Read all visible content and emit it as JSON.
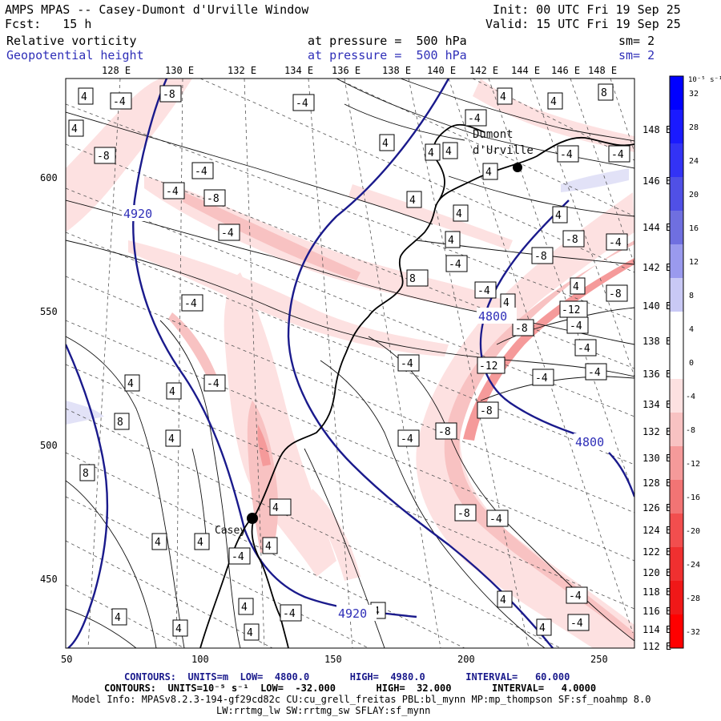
{
  "header": {
    "title": "AMPS MPAS -- Casey-Dumont d'Urville Window",
    "init": "Init: 00 UTC Fri 19 Sep 25",
    "fcst": "Fcst:   15 h",
    "valid": "Valid: 15 UTC Fri 19 Sep 25",
    "field1_name": "Relative vorticity",
    "field1_level": "at pressure =  500 hPa",
    "field1_sm": "sm= 2",
    "field2_name": "Geopotential height",
    "field2_level": "at pressure =  500 hPa",
    "field2_sm": "sm= 2"
  },
  "map": {
    "top_lon_labels": [
      "128 E",
      "130 E",
      "132 E",
      "134 E",
      "136 E",
      "138 E",
      "140 E",
      "142 E",
      "144 E",
      "146 E",
      "148 E"
    ],
    "right_lon_labels": [
      "148 E",
      "146 E",
      "144 E",
      "142 E",
      "140 E",
      "138 E",
      "136 E",
      "134 E",
      "132 E",
      "130 E",
      "128 E",
      "126 E",
      "124 E",
      "122 E",
      "120 E",
      "118 E",
      "116 E",
      "114 E",
      "112 E"
    ],
    "x_ticks": [
      "50",
      "100",
      "150",
      "200",
      "250"
    ],
    "y_ticks": [
      "600",
      "550",
      "500",
      "450"
    ],
    "station_labels": [
      "Dumont",
      "d'Urville",
      "Casey"
    ],
    "height_labels": [
      "4920",
      "4800",
      "4800",
      "4920"
    ],
    "vorticity_labels": [
      "4",
      "-4",
      "-8",
      "4",
      "4",
      "-4",
      "8",
      "4",
      "-4",
      "-8",
      "-4",
      "-4",
      "-8",
      "-4",
      "4",
      "4",
      "4",
      "-4",
      "4",
      "-4",
      "-8",
      "4",
      "-8",
      "-4",
      "4",
      "4",
      "8",
      "-4",
      "-4",
      "4",
      "4",
      "-4",
      "-8",
      "-4",
      "-4",
      "-12",
      "-8",
      "-4",
      "-12",
      "-4",
      "-4",
      "4",
      "4",
      "8",
      "8",
      "4",
      "-4",
      "4",
      "4",
      "-8",
      "-8",
      "-4",
      "-8",
      "4",
      "4",
      "-4",
      "4",
      "4",
      "-4",
      "4",
      "4",
      "-4",
      "-4",
      "4",
      "-4",
      "4",
      "4",
      "4"
    ]
  },
  "colorbar": {
    "unit_label": "10⁻⁵ s⁻¹",
    "labels": [
      "32",
      "28",
      "24",
      "20",
      "16",
      "12",
      "8",
      "4",
      "0",
      "-4",
      "-8",
      "-12",
      "-16",
      "-20",
      "-24",
      "-28",
      "-32"
    ],
    "colors": [
      "#0000ff",
      "#1a1aff",
      "#3333f5",
      "#5050e6",
      "#6f6fe0",
      "#9a9aee",
      "#c9c9f5",
      "#ffffff",
      "#ffffff",
      "#fde1e1",
      "#f8c2c2",
      "#f59a9a",
      "#f27474",
      "#f24e4e",
      "#f03030",
      "#f01818",
      "#ff0000"
    ]
  },
  "footer": {
    "contour1": "CONTOURS:  UNITS=m  LOW=  4800.0       HIGH=  4980.0       INTERVAL=   60.000",
    "contour2": "CONTOURS:  UNITS=10⁻⁵ s⁻¹  LOW=  -32.000       HIGH=  32.000       INTERVAL=   4.0000",
    "model_info": "Model Info: MPASv8.2.3-194-gf29cd82c CU:cu_grell_freitas PBL:bl_mynn MP:mp_thompson SF:sf_noahmp 8.0",
    "model_info2": "LW:rrtmg_lw SW:rrtmg_sw SFLAY:sf_mynn"
  }
}
